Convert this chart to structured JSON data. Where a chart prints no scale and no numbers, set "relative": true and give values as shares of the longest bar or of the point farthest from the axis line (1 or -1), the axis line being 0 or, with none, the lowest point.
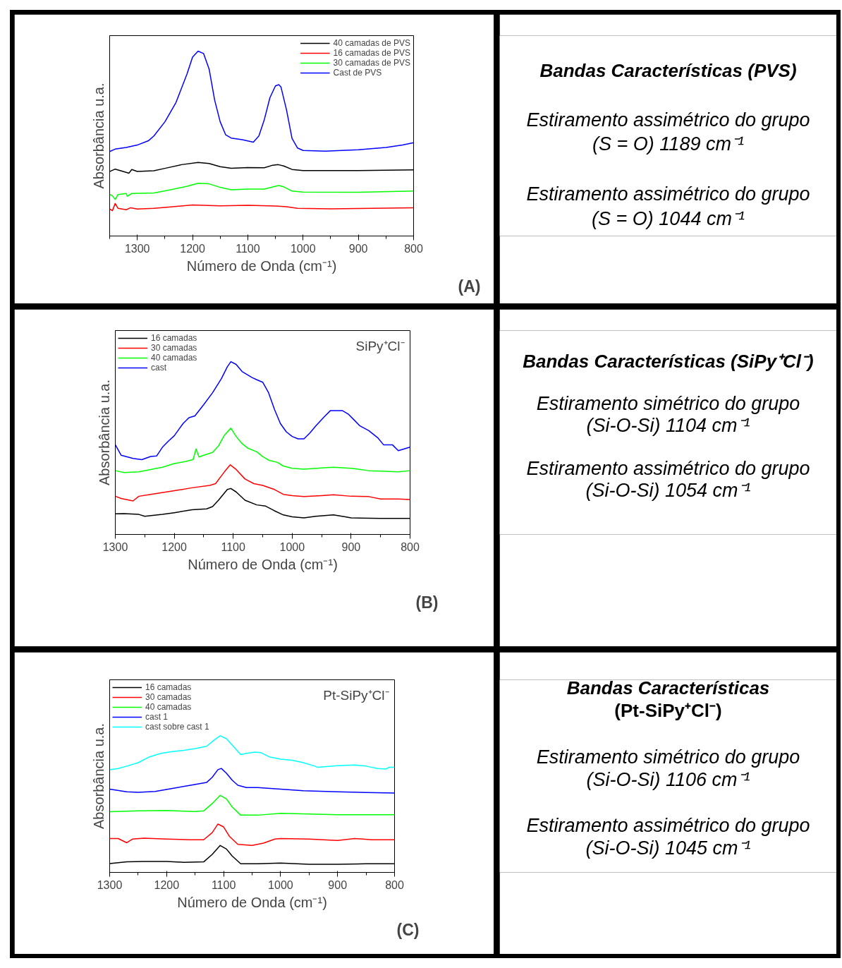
{
  "chart_data": [
    {
      "type": "line",
      "xlabel": "Número de Onda (cm⁻¹)",
      "ylabel": "Absorbância u.a.",
      "annotations": [
        "(A)"
      ],
      "relative": true,
      "tick_labels": "x",
      "legend": "top right",
      "xlim": [
        1350,
        800
      ],
      "xticks": [
        1300,
        1200,
        1100,
        1000,
        900,
        800
      ],
      "series": [
        {
          "name": "40 camadas de PVS",
          "color": "#000000",
          "x": [
            1350,
            1340,
            1330,
            1315,
            1310,
            1300,
            1270,
            1250,
            1220,
            1190,
            1170,
            1150,
            1130,
            1100,
            1070,
            1055,
            1045,
            1035,
            1020,
            1000,
            900,
            800
          ],
          "values": [
            0.349,
            0.362,
            0.353,
            0.34,
            0.36,
            0.349,
            0.353,
            0.366,
            0.386,
            0.398,
            0.392,
            0.375,
            0.366,
            0.37,
            0.369,
            0.383,
            0.386,
            0.379,
            0.36,
            0.354,
            0.354,
            0.358
          ]
        },
        {
          "name": "16 camadas de PVS",
          "color": "#ff0000",
          "x": [
            1350,
            1345,
            1340,
            1335,
            1320,
            1312,
            1300,
            1270,
            1250,
            1200,
            1150,
            1100,
            1050,
            1030,
            1010,
            950,
            900,
            800
          ],
          "values": [
            0.146,
            0.137,
            0.176,
            0.15,
            0.142,
            0.153,
            0.146,
            0.15,
            0.155,
            0.168,
            0.163,
            0.166,
            0.162,
            0.158,
            0.15,
            0.147,
            0.149,
            0.153
          ]
        },
        {
          "name": "30 camadas de PVS",
          "color": "#00ff00",
          "x": [
            1350,
            1345,
            1340,
            1335,
            1320,
            1318,
            1310,
            1270,
            1240,
            1210,
            1190,
            1170,
            1150,
            1130,
            1100,
            1070,
            1050,
            1044,
            1035,
            1020,
            1000,
            900,
            800
          ],
          "values": [
            0.226,
            0.217,
            0.198,
            0.224,
            0.23,
            0.215,
            0.23,
            0.233,
            0.25,
            0.269,
            0.285,
            0.282,
            0.263,
            0.25,
            0.254,
            0.254,
            0.269,
            0.273,
            0.266,
            0.243,
            0.238,
            0.237,
            0.243
          ]
        },
        {
          "name": "Cast de PVS",
          "color": "#0000ff",
          "x": [
            1350,
            1340,
            1320,
            1300,
            1280,
            1270,
            1250,
            1230,
            1210,
            1200,
            1190,
            1180,
            1170,
            1160,
            1150,
            1140,
            1130,
            1110,
            1090,
            1080,
            1070,
            1060,
            1050,
            1044,
            1040,
            1030,
            1020,
            1010,
            1000,
            960,
            900,
            850,
            820,
            800
          ],
          "values": [
            0.457,
            0.47,
            0.479,
            0.492,
            0.515,
            0.541,
            0.618,
            0.722,
            0.877,
            0.968,
            1,
            0.987,
            0.903,
            0.735,
            0.618,
            0.547,
            0.53,
            0.521,
            0.508,
            0.541,
            0.631,
            0.748,
            0.812,
            0.819,
            0.806,
            0.683,
            0.528,
            0.476,
            0.463,
            0.459,
            0.467,
            0.479,
            0.492,
            0.505
          ]
        }
      ]
    },
    {
      "type": "other",
      "title": "Bandas Características (PVS)",
      "annotations": [
        "Estiramento assimétrico do grupo",
        "(S = O) 1189 cm⁻¹",
        "Estiramento assimétrico do grupo",
        "(S = O) 1044 cm⁻¹"
      ]
    },
    {
      "type": "line",
      "subtitle": "SiPy⁺Cl⁻",
      "xlabel": "Número de Onda (cm⁻¹)",
      "ylabel": "Absorbância u.a.",
      "annotations": [
        "(B)"
      ],
      "relative": true,
      "tick_labels": "x",
      "legend": "top left",
      "xlim": [
        1300,
        800
      ],
      "xticks": [
        1300,
        1200,
        1100,
        1000,
        900,
        800
      ],
      "series": [
        {
          "name": "16 camadas",
          "color": "#000000",
          "x": [
            1300,
            1285,
            1260,
            1250,
            1220,
            1200,
            1170,
            1145,
            1135,
            1125,
            1110,
            1104,
            1095,
            1080,
            1060,
            1045,
            1030,
            1015,
            1000,
            980,
            960,
            930,
            910,
            900,
            850,
            800
          ],
          "values": [
            0.119,
            0.12,
            0.116,
            0.105,
            0.116,
            0.126,
            0.143,
            0.148,
            0.161,
            0.198,
            0.26,
            0.266,
            0.246,
            0.198,
            0.171,
            0.164,
            0.137,
            0.113,
            0.102,
            0.096,
            0.105,
            0.113,
            0.102,
            0.096,
            0.093,
            0.093
          ]
        },
        {
          "name": "30 camadas",
          "color": "#ff0000",
          "x": [
            1300,
            1290,
            1270,
            1260,
            1240,
            1200,
            1170,
            1140,
            1130,
            1115,
            1105,
            1095,
            1080,
            1065,
            1050,
            1030,
            1015,
            1000,
            980,
            950,
            930,
            900,
            870,
            850,
            820,
            800
          ],
          "values": [
            0.221,
            0.208,
            0.194,
            0.221,
            0.232,
            0.253,
            0.27,
            0.284,
            0.294,
            0.362,
            0.403,
            0.376,
            0.321,
            0.294,
            0.284,
            0.26,
            0.232,
            0.225,
            0.219,
            0.225,
            0.23,
            0.221,
            0.219,
            0.205,
            0.205,
            0.202
          ]
        },
        {
          "name": "40 camadas",
          "color": "#00ff00",
          "x": [
            1300,
            1285,
            1260,
            1240,
            1220,
            1200,
            1180,
            1168,
            1163,
            1158,
            1150,
            1135,
            1125,
            1115,
            1104,
            1095,
            1085,
            1075,
            1060,
            1050,
            1040,
            1025,
            1015,
            1000,
            980,
            950,
            930,
            900,
            870,
            850,
            820,
            800
          ],
          "values": [
            0.369,
            0.358,
            0.362,
            0.376,
            0.389,
            0.41,
            0.423,
            0.434,
            0.495,
            0.448,
            0.458,
            0.475,
            0.512,
            0.574,
            0.615,
            0.567,
            0.526,
            0.499,
            0.478,
            0.451,
            0.43,
            0.417,
            0.396,
            0.383,
            0.378,
            0.385,
            0.389,
            0.383,
            0.369,
            0.366,
            0.362,
            0.369
          ]
        },
        {
          "name": "cast",
          "color": "#0000ff",
          "x": [
            1300,
            1290,
            1270,
            1255,
            1240,
            1230,
            1220,
            1210,
            1200,
            1185,
            1175,
            1165,
            1150,
            1135,
            1120,
            1110,
            1104,
            1095,
            1085,
            1075,
            1068,
            1060,
            1050,
            1040,
            1030,
            1020,
            1010,
            1000,
            990,
            980,
            970,
            960,
            945,
            935,
            925,
            915,
            905,
            895,
            885,
            870,
            855,
            845,
            830,
            820,
            810,
            800
          ],
          "values": [
            0.519,
            0.458,
            0.44,
            0.433,
            0.451,
            0.454,
            0.505,
            0.54,
            0.571,
            0.642,
            0.676,
            0.686,
            0.751,
            0.82,
            0.902,
            0.97,
            1,
            0.984,
            0.943,
            0.922,
            0.908,
            0.895,
            0.881,
            0.82,
            0.724,
            0.642,
            0.594,
            0.567,
            0.553,
            0.553,
            0.587,
            0.628,
            0.683,
            0.717,
            0.717,
            0.717,
            0.697,
            0.663,
            0.628,
            0.601,
            0.56,
            0.519,
            0.519,
            0.485,
            0.495,
            0.505
          ]
        }
      ]
    },
    {
      "type": "other",
      "title": "Bandas Características (SiPy⁺Cl⁻)",
      "annotations": [
        "Estiramento simétrico do grupo",
        "(Si-O-Si) 1104 cm⁻¹",
        "Estiramento assimétrico do grupo",
        "(Si-O-Si) 1054 cm⁻¹"
      ]
    },
    {
      "type": "line",
      "subtitle": "Pt-SiPy⁺Cl⁻",
      "xlabel": "Número de Onda (cm⁻¹)",
      "ylabel": "Absorbância u.a.",
      "annotations": [
        "(C)"
      ],
      "relative": true,
      "tick_labels": "x",
      "legend": "top left",
      "xlim": [
        1300,
        800
      ],
      "xticks": [
        1300,
        1200,
        1100,
        1000,
        900,
        800
      ],
      "series": [
        {
          "name": "16 camadas",
          "color": "#000000",
          "x": [
            1300,
            1270,
            1240,
            1200,
            1170,
            1135,
            1120,
            1106,
            1095,
            1085,
            1070,
            1040,
            1000,
            950,
            900,
            850,
            800
          ],
          "values": [
            0.065,
            0.077,
            0.08,
            0.08,
            0.074,
            0.077,
            0.132,
            0.197,
            0.171,
            0.12,
            0.063,
            0.063,
            0.068,
            0.06,
            0.06,
            0.063,
            0.063
          ]
        },
        {
          "name": "30 camadas",
          "color": "#ff0000",
          "x": [
            1300,
            1285,
            1270,
            1260,
            1240,
            1200,
            1160,
            1135,
            1120,
            1110,
            1100,
            1090,
            1075,
            1050,
            1030,
            1010,
            1000,
            950,
            900,
            870,
            840,
            800
          ],
          "values": [
            0.248,
            0.248,
            0.217,
            0.244,
            0.251,
            0.244,
            0.239,
            0.239,
            0.291,
            0.354,
            0.333,
            0.265,
            0.205,
            0.197,
            0.214,
            0.244,
            0.248,
            0.244,
            0.234,
            0.248,
            0.239,
            0.239
          ]
        },
        {
          "name": "40 camadas",
          "color": "#00ff00",
          "x": [
            1300,
            1250,
            1200,
            1150,
            1135,
            1120,
            1106,
            1095,
            1085,
            1070,
            1040,
            1000,
            950,
            900,
            800
          ],
          "values": [
            0.444,
            0.45,
            0.453,
            0.446,
            0.45,
            0.504,
            0.564,
            0.538,
            0.479,
            0.419,
            0.419,
            0.432,
            0.427,
            0.422,
            0.422
          ]
        },
        {
          "name": "cast 1",
          "color": "#0000ff",
          "x": [
            1300,
            1270,
            1250,
            1220,
            1190,
            1160,
            1130,
            1120,
            1110,
            1104,
            1095,
            1085,
            1075,
            1060,
            1040,
            1000,
            960,
            900,
            850,
            800
          ],
          "values": [
            0.61,
            0.59,
            0.586,
            0.593,
            0.615,
            0.636,
            0.658,
            0.696,
            0.752,
            0.761,
            0.726,
            0.675,
            0.638,
            0.621,
            0.621,
            0.61,
            0.598,
            0.59,
            0.585,
            0.581
          ]
        },
        {
          "name": "cast sobre cast 1",
          "color": "#00ffff",
          "x": [
            1300,
            1285,
            1270,
            1250,
            1230,
            1210,
            1190,
            1170,
            1150,
            1130,
            1115,
            1106,
            1095,
            1085,
            1070,
            1060,
            1045,
            1035,
            1020,
            1000,
            980,
            960,
            940,
            935,
            900,
            870,
            850,
            830,
            815,
            810,
            800
          ],
          "values": [
            0.752,
            0.761,
            0.778,
            0.803,
            0.846,
            0.872,
            0.884,
            0.894,
            0.906,
            0.923,
            0.974,
            1,
            0.979,
            0.932,
            0.863,
            0.872,
            0.88,
            0.877,
            0.846,
            0.829,
            0.821,
            0.803,
            0.778,
            0.769,
            0.781,
            0.786,
            0.778,
            0.761,
            0.757,
            0.769,
            0.769
          ]
        }
      ]
    },
    {
      "type": "other",
      "title": "Bandas Características",
      "subtitle": "(Pt-SiPy⁺Cl⁻)",
      "annotations": [
        "Estiramento simétrico do grupo",
        "(Si-O-Si) 1106 cm⁻¹",
        "Estiramento assimétrico do grupo",
        "(Si-O-Si) 1045 cm⁻¹"
      ]
    }
  ]
}
